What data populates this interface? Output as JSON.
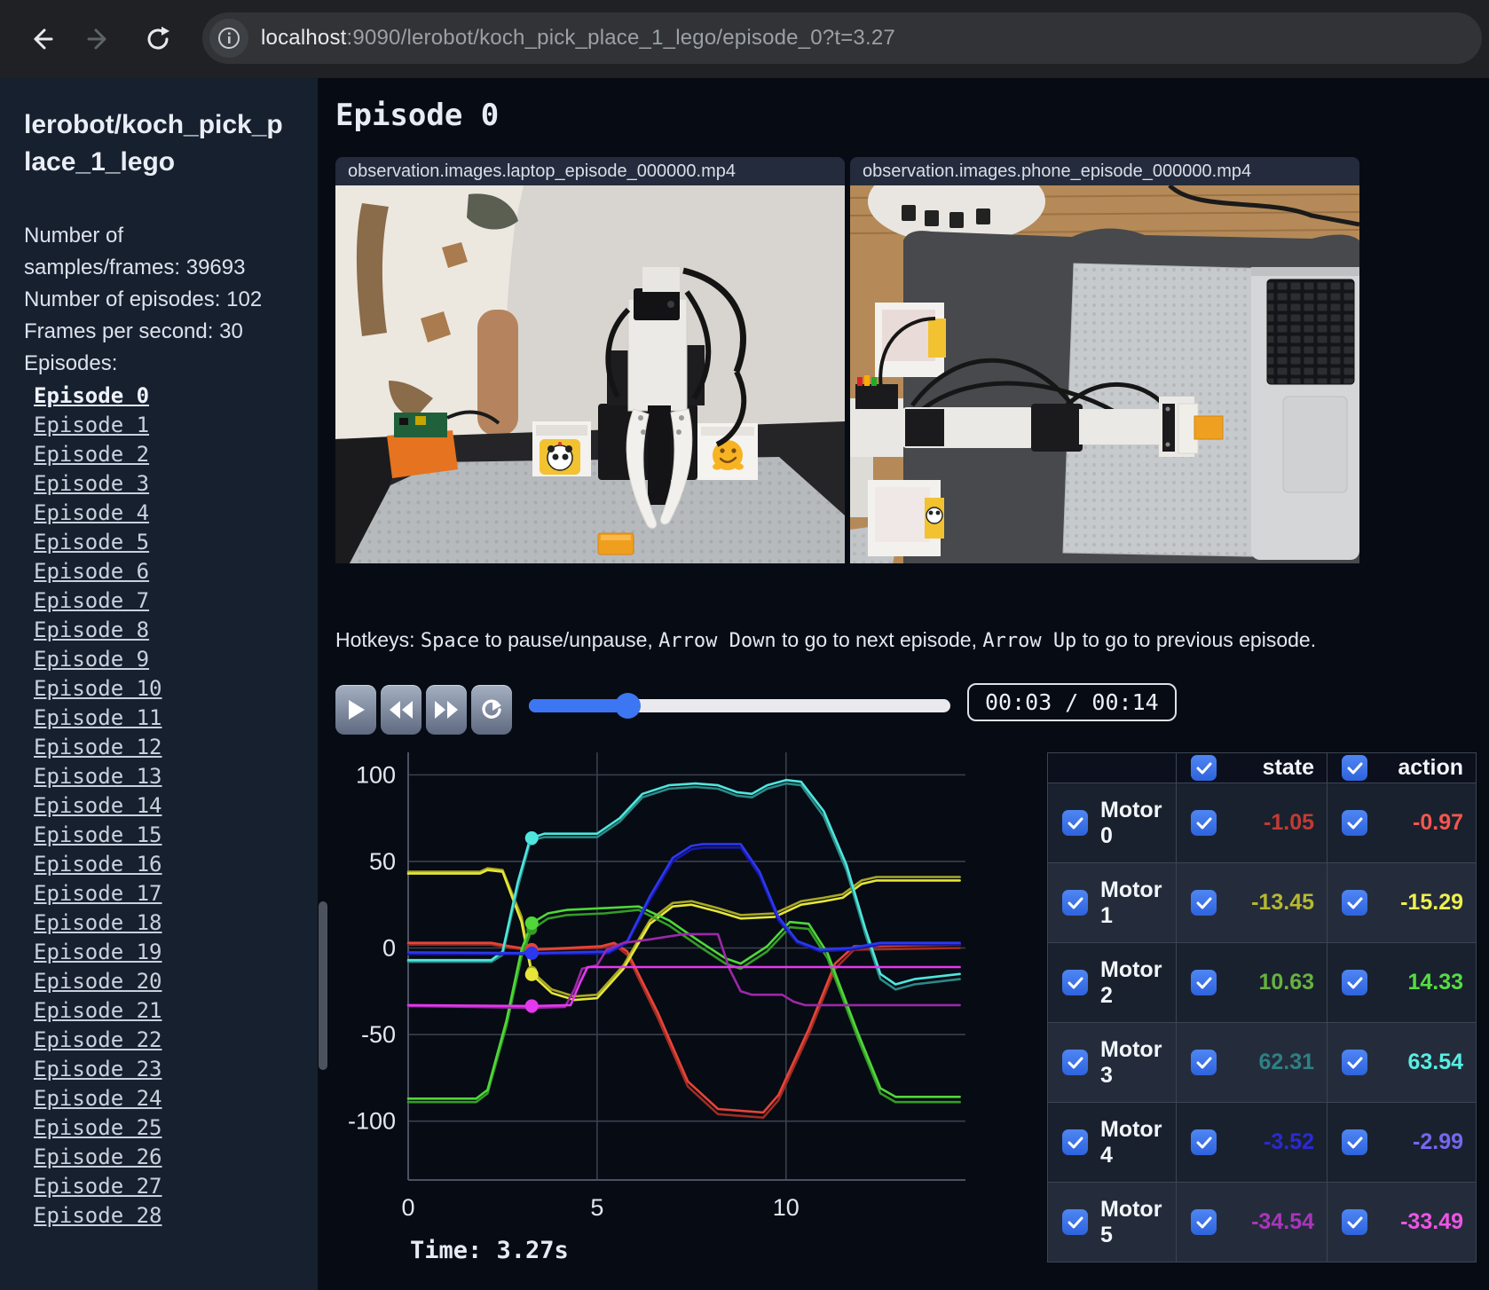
{
  "browser": {
    "url_host": "localhost",
    "url_rest": ":9090/lerobot/koch_pick_place_1_lego/episode_0?t=3.27"
  },
  "sidebar": {
    "title": "lerobot/koch_pick_place_1_lego",
    "stats_lines": [
      "Number of",
      "samples/frames: 39693",
      "Number of episodes: 102",
      "Frames per second: 30"
    ],
    "episodes_label": "Episodes:",
    "active_episode": "Episode 0",
    "episodes": [
      "Episode 0",
      "Episode 1",
      "Episode 2",
      "Episode 3",
      "Episode 4",
      "Episode 5",
      "Episode 6",
      "Episode 7",
      "Episode 8",
      "Episode 9",
      "Episode 10",
      "Episode 11",
      "Episode 12",
      "Episode 13",
      "Episode 14",
      "Episode 15",
      "Episode 16",
      "Episode 17",
      "Episode 18",
      "Episode 19",
      "Episode 20",
      "Episode 21",
      "Episode 22",
      "Episode 23",
      "Episode 24",
      "Episode 25",
      "Episode 26",
      "Episode 27",
      "Episode 28"
    ]
  },
  "main": {
    "title": "Episode 0",
    "videos": [
      {
        "title": "observation.images.laptop_episode_000000.mp4"
      },
      {
        "title": "observation.images.phone_episode_000000.mp4"
      }
    ],
    "hotkeys": {
      "prefix": "Hotkeys: ",
      "space": "Space",
      "mid1": " to pause/unpause, ",
      "down": "Arrow Down",
      "mid2": " to go to next episode, ",
      "up": "Arrow Up",
      "suffix": " to go to previous episode."
    },
    "player": {
      "time": "00:03 / 00:14",
      "progress_pct": 23.4
    },
    "time_label": "Time: 3.27s"
  },
  "table": {
    "headers": [
      "state",
      "action"
    ],
    "rows": [
      {
        "label": "Motor 0",
        "state": "-1.05",
        "action": "-0.97",
        "state_color": "#c23b32",
        "action_color": "#f4564e"
      },
      {
        "label": "Motor 1",
        "state": "-13.45",
        "action": "-15.29",
        "state_color": "#b6b832",
        "action_color": "#eef04e"
      },
      {
        "label": "Motor 2",
        "state": "10.63",
        "action": "14.33",
        "state_color": "#66b240",
        "action_color": "#55dd42"
      },
      {
        "label": "Motor 3",
        "state": "62.31",
        "action": "63.54",
        "state_color": "#2f8084",
        "action_color": "#58eee2"
      },
      {
        "label": "Motor 4",
        "state": "-3.52",
        "action": "-2.99",
        "state_color": "#2a2ad4",
        "action_color": "#7468f0"
      },
      {
        "label": "Motor 5",
        "state": "-34.54",
        "action": "-33.49",
        "state_color": "#aa35bb",
        "action_color": "#ee55e4"
      }
    ]
  },
  "chart_data": {
    "type": "line",
    "x_ticks": [
      0,
      5,
      10
    ],
    "y_ticks": [
      100,
      50,
      0,
      -50,
      -100
    ],
    "xlim": [
      0,
      14.75
    ],
    "ylim": [
      -134,
      113
    ],
    "grid": true,
    "current_time": 3.27,
    "series": [
      {
        "name": "Motor 0 state",
        "color": "#9e2d24",
        "points": [
          [
            0,
            2
          ],
          [
            2.2,
            2
          ],
          [
            2.7,
            0
          ],
          [
            3.27,
            -1.05
          ],
          [
            5.1,
            0
          ],
          [
            5.45,
            2
          ],
          [
            5.8,
            -4
          ],
          [
            6.6,
            -40
          ],
          [
            7.4,
            -80
          ],
          [
            8.2,
            -96
          ],
          [
            9.4,
            -98
          ],
          [
            9.8,
            -88
          ],
          [
            10.6,
            -50
          ],
          [
            11.3,
            -12
          ],
          [
            11.8,
            -1
          ],
          [
            14.6,
            0
          ]
        ]
      },
      {
        "name": "Motor 0 action",
        "color": "#e64438",
        "points": [
          [
            0,
            3
          ],
          [
            2.2,
            3
          ],
          [
            2.7,
            1
          ],
          [
            3.27,
            -0.97
          ],
          [
            5.1,
            1
          ],
          [
            5.45,
            3
          ],
          [
            5.8,
            -2
          ],
          [
            6.6,
            -37
          ],
          [
            7.4,
            -77
          ],
          [
            8.2,
            -93
          ],
          [
            9.4,
            -95
          ],
          [
            9.8,
            -85
          ],
          [
            10.6,
            -47
          ],
          [
            11.3,
            -9
          ],
          [
            11.8,
            1
          ],
          [
            14.6,
            2
          ]
        ]
      },
      {
        "name": "Motor 1 state",
        "color": "#a8a824",
        "points": [
          [
            0,
            44
          ],
          [
            1.9,
            44
          ],
          [
            2.1,
            46
          ],
          [
            2.5,
            45
          ],
          [
            3.0,
            18
          ],
          [
            3.27,
            -13.45
          ],
          [
            3.8,
            -24
          ],
          [
            4.4,
            -28
          ],
          [
            5.0,
            -27
          ],
          [
            5.7,
            -10
          ],
          [
            6.4,
            16
          ],
          [
            7.0,
            26
          ],
          [
            7.5,
            27
          ],
          [
            8.2,
            23
          ],
          [
            8.8,
            19
          ],
          [
            9.7,
            20
          ],
          [
            10.4,
            27
          ],
          [
            11.0,
            29
          ],
          [
            11.5,
            31
          ],
          [
            12.0,
            39
          ],
          [
            12.4,
            41
          ],
          [
            14.6,
            41
          ]
        ]
      },
      {
        "name": "Motor 1 action",
        "color": "#e6e638",
        "points": [
          [
            0,
            43
          ],
          [
            1.9,
            43
          ],
          [
            2.1,
            45
          ],
          [
            2.5,
            44
          ],
          [
            3.0,
            15
          ],
          [
            3.27,
            -15.29
          ],
          [
            3.8,
            -26
          ],
          [
            4.4,
            -30
          ],
          [
            5.0,
            -29
          ],
          [
            5.7,
            -12
          ],
          [
            6.4,
            14
          ],
          [
            7.0,
            24
          ],
          [
            7.5,
            25
          ],
          [
            8.2,
            21
          ],
          [
            8.8,
            17
          ],
          [
            9.7,
            18
          ],
          [
            10.4,
            25
          ],
          [
            11.0,
            27
          ],
          [
            11.5,
            29
          ],
          [
            12.0,
            37
          ],
          [
            12.4,
            39
          ],
          [
            14.6,
            39
          ]
        ]
      },
      {
        "name": "Motor 2 state",
        "color": "#349c26",
        "points": [
          [
            0,
            -89
          ],
          [
            1.8,
            -89
          ],
          [
            2.1,
            -84
          ],
          [
            2.6,
            -45
          ],
          [
            3.0,
            -5
          ],
          [
            3.27,
            10.63
          ],
          [
            3.7,
            17
          ],
          [
            4.2,
            19
          ],
          [
            5.2,
            20
          ],
          [
            6.1,
            22
          ],
          [
            6.9,
            13
          ],
          [
            7.7,
            1
          ],
          [
            8.4,
            -9
          ],
          [
            8.8,
            -12
          ],
          [
            9.5,
            -2
          ],
          [
            10.1,
            12
          ],
          [
            10.6,
            11
          ],
          [
            11.1,
            -6
          ],
          [
            11.9,
            -52
          ],
          [
            12.5,
            -84
          ],
          [
            12.9,
            -89
          ],
          [
            14.6,
            -89
          ]
        ]
      },
      {
        "name": "Motor 2 action",
        "color": "#4fd838",
        "points": [
          [
            0,
            -87
          ],
          [
            1.8,
            -87
          ],
          [
            2.1,
            -82
          ],
          [
            2.6,
            -42
          ],
          [
            3.0,
            -1
          ],
          [
            3.27,
            14.33
          ],
          [
            3.7,
            20
          ],
          [
            4.2,
            22
          ],
          [
            5.2,
            23
          ],
          [
            6.1,
            24
          ],
          [
            6.9,
            16
          ],
          [
            7.7,
            4
          ],
          [
            8.4,
            -6
          ],
          [
            8.8,
            -9
          ],
          [
            9.5,
            1
          ],
          [
            10.1,
            15
          ],
          [
            10.6,
            14
          ],
          [
            11.1,
            -3
          ],
          [
            11.9,
            -49
          ],
          [
            12.5,
            -81
          ],
          [
            12.9,
            -86
          ],
          [
            14.6,
            -86
          ]
        ]
      },
      {
        "name": "Motor 3 state",
        "color": "#2a8a84",
        "points": [
          [
            0,
            -8
          ],
          [
            2.2,
            -8
          ],
          [
            2.5,
            -4
          ],
          [
            2.9,
            35
          ],
          [
            3.2,
            59
          ],
          [
            3.27,
            62.31
          ],
          [
            3.6,
            64
          ],
          [
            5.0,
            64
          ],
          [
            5.6,
            73
          ],
          [
            6.2,
            87
          ],
          [
            6.9,
            92
          ],
          [
            7.6,
            93
          ],
          [
            8.2,
            92
          ],
          [
            8.7,
            88
          ],
          [
            9.1,
            87
          ],
          [
            9.5,
            92
          ],
          [
            10.0,
            95
          ],
          [
            10.4,
            94
          ],
          [
            11.0,
            76
          ],
          [
            11.6,
            45
          ],
          [
            12.1,
            8
          ],
          [
            12.5,
            -18
          ],
          [
            12.9,
            -24
          ],
          [
            13.4,
            -21
          ],
          [
            14.6,
            -18
          ]
        ]
      },
      {
        "name": "Motor 3 action",
        "color": "#4fe6de",
        "points": [
          [
            0,
            -7
          ],
          [
            2.2,
            -7
          ],
          [
            2.5,
            -2
          ],
          [
            2.9,
            38
          ],
          [
            3.2,
            61
          ],
          [
            3.27,
            63.54
          ],
          [
            3.6,
            66
          ],
          [
            5.0,
            66
          ],
          [
            5.6,
            75
          ],
          [
            6.2,
            89
          ],
          [
            6.9,
            94
          ],
          [
            7.6,
            95
          ],
          [
            8.2,
            94
          ],
          [
            8.7,
            90
          ],
          [
            9.1,
            89
          ],
          [
            9.5,
            94
          ],
          [
            10.0,
            97
          ],
          [
            10.4,
            96
          ],
          [
            11.0,
            79
          ],
          [
            11.6,
            48
          ],
          [
            12.1,
            11
          ],
          [
            12.5,
            -15
          ],
          [
            12.9,
            -21
          ],
          [
            13.4,
            -18
          ],
          [
            14.6,
            -15
          ]
        ]
      },
      {
        "name": "Motor 4 state",
        "color": "#1818a8",
        "points": [
          [
            0,
            -3.5
          ],
          [
            3.27,
            -3.52
          ],
          [
            5.3,
            -3
          ],
          [
            5.8,
            3
          ],
          [
            6.4,
            28
          ],
          [
            7.0,
            50
          ],
          [
            7.5,
            57
          ],
          [
            7.8,
            58
          ],
          [
            8.8,
            58
          ],
          [
            9.3,
            42
          ],
          [
            9.8,
            16
          ],
          [
            10.3,
            3
          ],
          [
            10.9,
            -2
          ],
          [
            11.7,
            -1
          ],
          [
            12.5,
            2
          ],
          [
            14.6,
            2
          ]
        ]
      },
      {
        "name": "Motor 4 action",
        "color": "#2b38ee",
        "points": [
          [
            0,
            -2.5
          ],
          [
            3.27,
            -2.99
          ],
          [
            5.3,
            -2
          ],
          [
            5.8,
            4
          ],
          [
            6.4,
            30
          ],
          [
            7.0,
            52
          ],
          [
            7.5,
            59
          ],
          [
            7.8,
            60
          ],
          [
            8.8,
            60
          ],
          [
            9.3,
            44
          ],
          [
            9.8,
            18
          ],
          [
            10.3,
            4
          ],
          [
            10.9,
            -1
          ],
          [
            11.7,
            0
          ],
          [
            12.5,
            3
          ],
          [
            14.6,
            3
          ]
        ]
      },
      {
        "name": "Motor 5 state",
        "color": "#9c28a8",
        "points": [
          [
            0,
            -33.5
          ],
          [
            3.27,
            -34.54
          ],
          [
            4.15,
            -34
          ],
          [
            4.4,
            -24
          ],
          [
            4.6,
            -12
          ],
          [
            5.0,
            -10
          ],
          [
            5.25,
            -1
          ],
          [
            5.7,
            3
          ],
          [
            6.4,
            5
          ],
          [
            7.3,
            8
          ],
          [
            8.2,
            8
          ],
          [
            8.5,
            -12
          ],
          [
            8.8,
            -25
          ],
          [
            9.1,
            -27
          ],
          [
            9.9,
            -27
          ],
          [
            10.2,
            -31
          ],
          [
            10.5,
            -33
          ],
          [
            14.6,
            -33
          ]
        ]
      },
      {
        "name": "Motor 5 action",
        "color": "#e638ee",
        "points": [
          [
            0,
            -33
          ],
          [
            3.27,
            -33.49
          ],
          [
            4.3,
            -33
          ],
          [
            4.55,
            -20
          ],
          [
            4.75,
            -11
          ],
          [
            14.6,
            -11
          ]
        ]
      }
    ]
  }
}
